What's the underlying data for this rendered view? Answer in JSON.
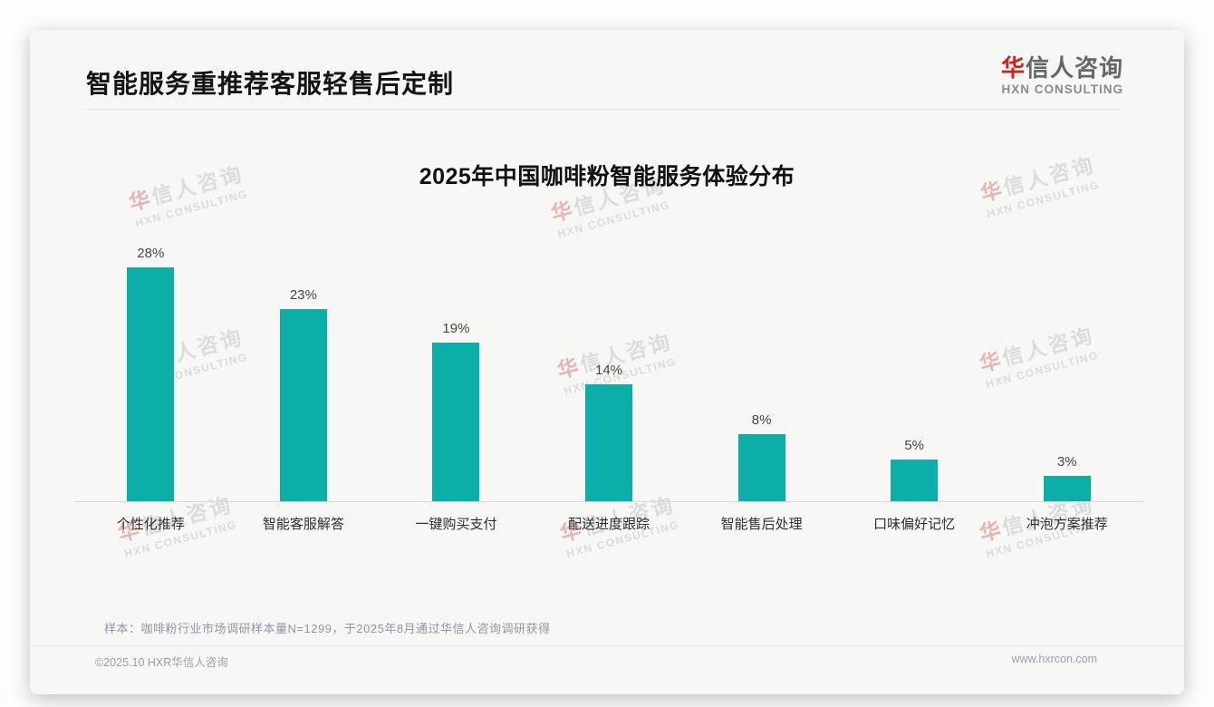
{
  "header": {
    "title": "智能服务重推荐客服轻售后定制",
    "logo": {
      "accent_char": "华",
      "rest": "信人咨询",
      "english": "HXN CONSULTING"
    }
  },
  "chart_data": {
    "type": "bar",
    "title": "2025年中国咖啡粉智能服务体验分布",
    "categories": [
      "个性化推荐",
      "智能客服解答",
      "一键购买支付",
      "配送进度跟踪",
      "智能售后处理",
      "口味偏好记忆",
      "冲泡方案推荐"
    ],
    "values": [
      28,
      23,
      19,
      14,
      8,
      5,
      3
    ],
    "unit": "%",
    "xlabel": "",
    "ylabel": "",
    "ylim": [
      0,
      30
    ],
    "grid": false,
    "legend": false,
    "bar_color": "#0cafa7",
    "value_label_color": "#454545",
    "axis_line_color": "#d8d8d8"
  },
  "footnote": {
    "text": "样本：咖啡粉行业市场调研样本量N=1299，于2025年8月通过华信人咨询调研获得"
  },
  "footer": {
    "copyright": "©2025.10 HXR华信人咨询",
    "website": "www.hxrcon.com"
  },
  "watermark": {
    "line1": "华信人咨询",
    "accent_char": "华",
    "line2": "HXN CONSULTING"
  }
}
